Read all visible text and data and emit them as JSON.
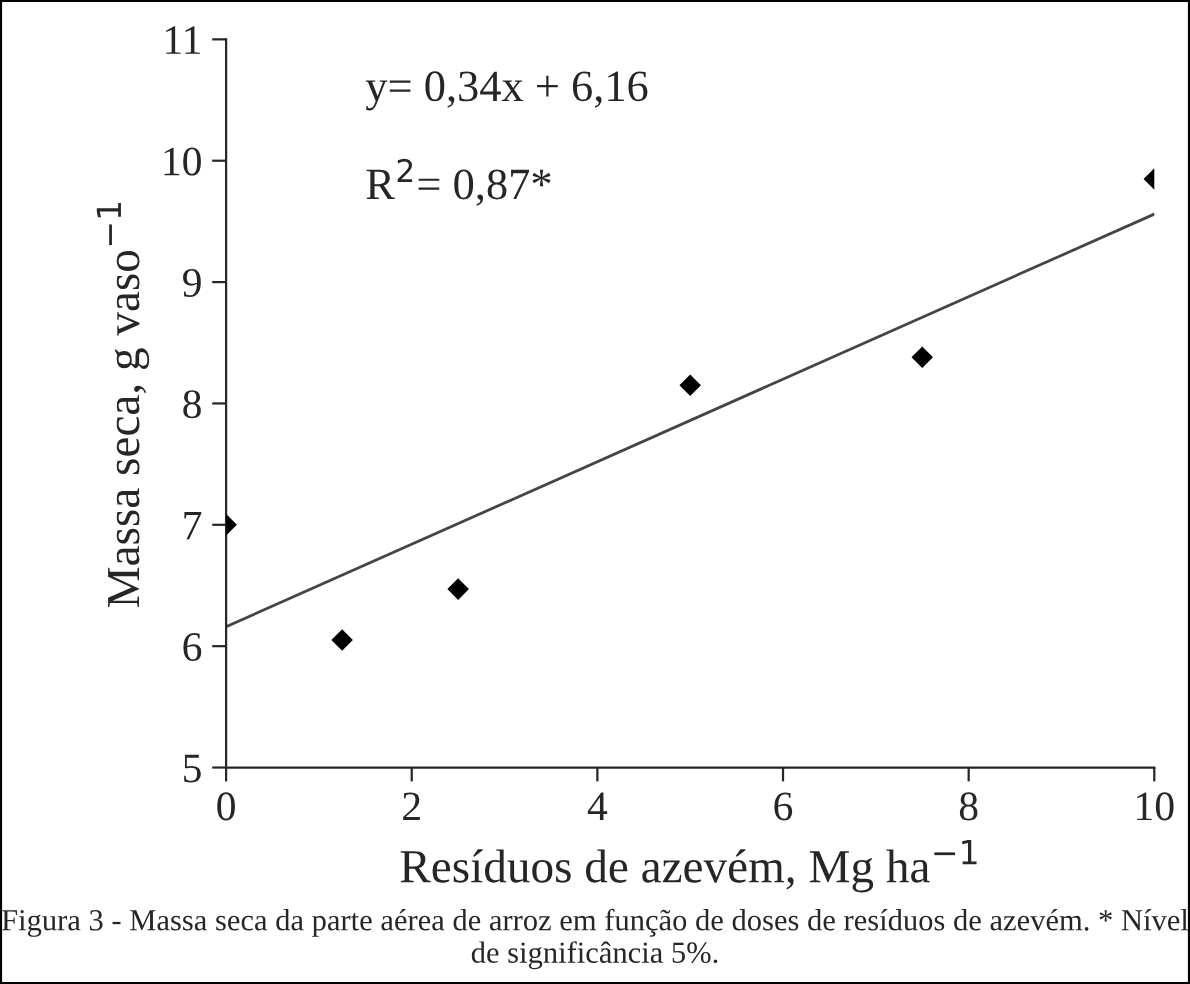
{
  "chart_data": {
    "type": "scatter",
    "xlabel": "Resíduos de azevém, Mg ha$^{−1}$",
    "ylabel": "Massa seca, g vaso$^{−1}$",
    "series": [
      {
        "color": "#000000",
        "marker": "diamond",
        "x": [
          0,
          1.25,
          2.5,
          5,
          7.5,
          10
        ],
        "values": [
          7.0,
          6.05,
          6.47,
          8.15,
          8.38,
          9.85
        ]
      },
      {
        "type": "line",
        "color": "#444444",
        "marker": "none",
        "line_style": "solid",
        "x": [
          0,
          10
        ],
        "values": [
          6.16,
          9.56
        ]
      }
    ],
    "xlim": [
      0,
      10
    ],
    "xticks": [
      0,
      2,
      4,
      6,
      8,
      10
    ],
    "ylim": [
      5,
      11
    ],
    "yticks": [
      5,
      6,
      7,
      8,
      9,
      10,
      11
    ],
    "grid": false,
    "legend": false,
    "annotations": [
      "y= 0,34x + 6,16",
      "R$^{2}$= 0,87*",
      "Figura 3 - Massa seca da parte aérea de arroz em função de doses de resíduos de azevém. * Nível de significância 5%."
    ]
  }
}
